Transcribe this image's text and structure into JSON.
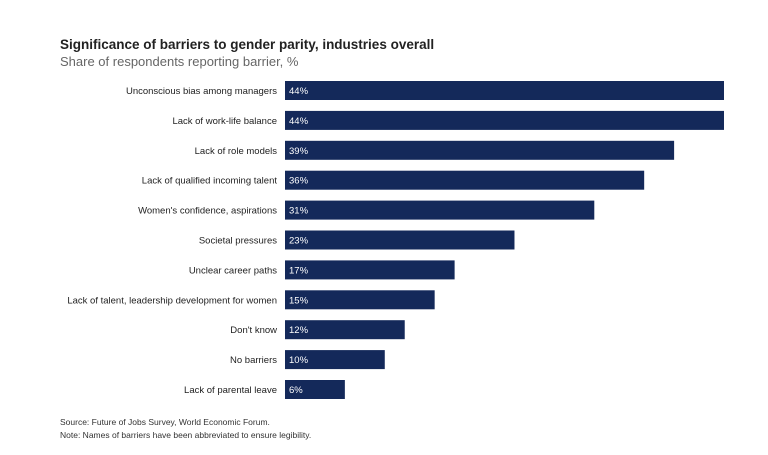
{
  "header": {
    "title": "Significance of barriers to gender parity, industries overall",
    "subtitle": "Share of respondents reporting barrier, %"
  },
  "footer": {
    "source": "Source: Future of Jobs Survey, World Economic Forum.",
    "note": "Note: Names of barriers have been abbreviated to ensure legibility."
  },
  "colors": {
    "bar": "#14295a",
    "value_text": "#ffffff"
  },
  "chart_data": {
    "type": "bar",
    "orientation": "horizontal",
    "title": "Significance of barriers to gender parity, industries overall",
    "subtitle": "Share of respondents reporting barrier, %",
    "xlabel": "",
    "ylabel": "",
    "xlim": [
      0,
      44
    ],
    "grid": false,
    "categories": [
      "Unconscious bias among managers",
      "Lack of work-life balance",
      "Lack of role models",
      "Lack of qualified incoming talent",
      "Women's confidence, aspirations",
      "Societal pressures",
      "Unclear career paths",
      "Lack of talent, leadership development for women",
      "Don't know",
      "No barriers",
      "Lack of parental leave"
    ],
    "values": [
      44,
      44,
      39,
      36,
      31,
      23,
      17,
      15,
      12,
      10,
      6
    ],
    "value_labels": [
      "44%",
      "44%",
      "39%",
      "36%",
      "31%",
      "23%",
      "17%",
      "15%",
      "12%",
      "10%",
      "6%"
    ]
  }
}
